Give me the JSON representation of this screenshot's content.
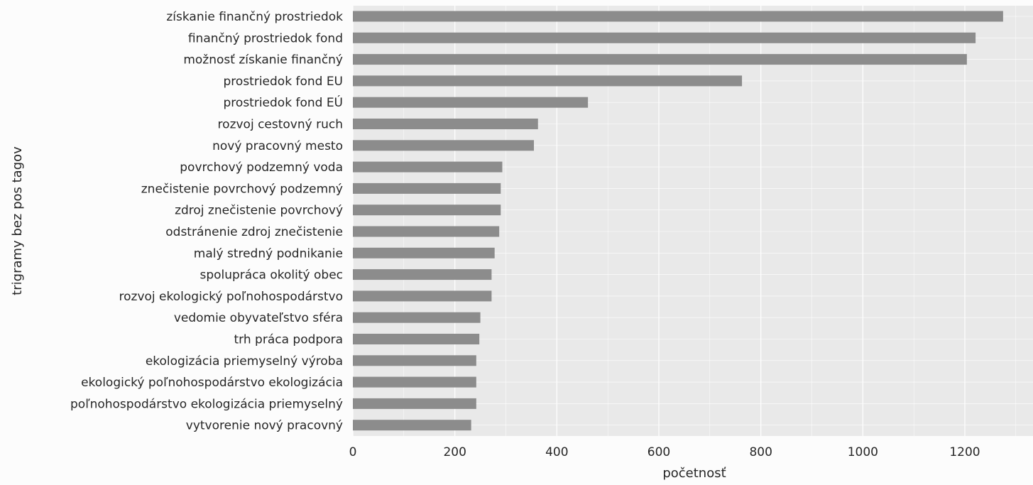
{
  "chart_data": {
    "type": "bar",
    "orientation": "horizontal",
    "xlabel": "početnosť",
    "ylabel": "trigramy bez pos tagov",
    "xlim": [
      0,
      1320
    ],
    "x_ticks": [
      0,
      200,
      400,
      600,
      800,
      1000,
      1200
    ],
    "grid": true,
    "categories": [
      "získanie finančný prostriedok",
      "finančný prostriedok fond",
      "možnosť získanie finančný",
      "prostriedok fond EU",
      "prostriedok fond EÚ",
      "rozvoj cestovný ruch",
      "nový pracovný mesto",
      "povrchový podzemný voda",
      "znečistenie povrchový podzemný",
      "zdroj znečistenie povrchový",
      "odstránenie zdroj znečistenie",
      "malý stredný podnikanie",
      "spolupráca okolitý obec",
      "rozvoj ekologický poľnohospodárstvo",
      "vedomie obyvateľstvo sféra",
      "trh práca podpora",
      "ekologizácia priemyselný výroba",
      "ekologický poľnohospodárstvo ekologizácia",
      "poľnohospodárstvo ekologizácia priemyselný",
      "vytvorenie nový pracovný"
    ],
    "values": [
      1275,
      1221,
      1204,
      763,
      461,
      363,
      355,
      293,
      290,
      290,
      287,
      278,
      272,
      272,
      250,
      248,
      242,
      242,
      242,
      232
    ],
    "colors": {
      "bar": "#8c8c8c",
      "plot_background": "#e9e9e9",
      "grid": "#ffffff",
      "text": "#262626",
      "page_background": "#fcfcfc"
    }
  }
}
